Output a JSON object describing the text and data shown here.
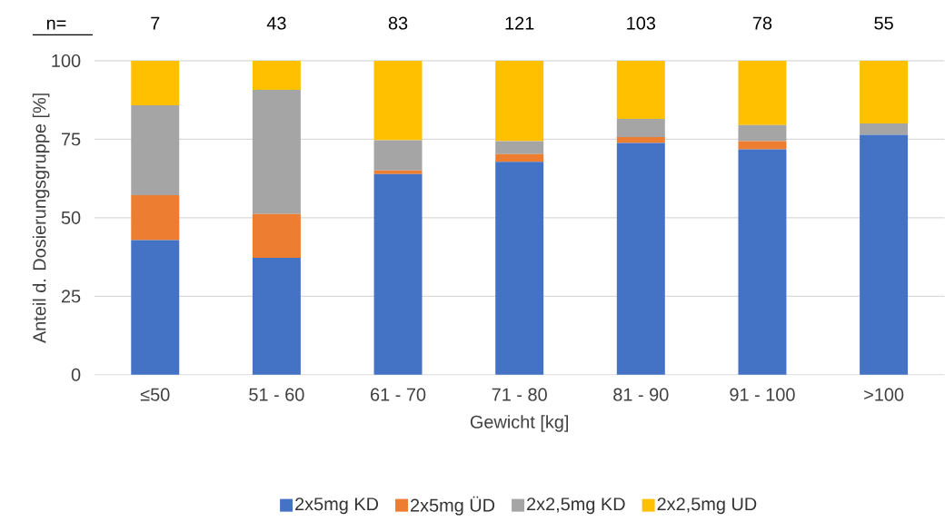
{
  "chart_data": {
    "type": "bar",
    "stacked": true,
    "xlabel": "Gewicht [kg]",
    "ylabel": "Anteil d. Dosierungsgruppe [%]",
    "categories": [
      "≤50",
      "51 - 60",
      "61 - 70",
      "71 - 80",
      "81 - 90",
      "91 - 100",
      ">100"
    ],
    "series": [
      {
        "name": "2x5mg KD",
        "color": "#4472c4",
        "values": [
          42.9,
          37.2,
          63.9,
          67.8,
          73.8,
          71.8,
          76.4
        ]
      },
      {
        "name": "2x5mg ÜD",
        "color": "#ed7d31",
        "values": [
          14.3,
          14.0,
          1.2,
          2.5,
          1.9,
          2.6,
          0
        ]
      },
      {
        "name": "2x2,5mg KD",
        "color": "#a5a5a5",
        "values": [
          28.6,
          39.5,
          9.6,
          4.1,
          5.8,
          5.1,
          3.6
        ]
      },
      {
        "name": "2x2,5mg UD",
        "color": "#ffc000",
        "values": [
          14.2,
          9.3,
          25.3,
          25.6,
          18.5,
          20.5,
          20.0
        ]
      }
    ],
    "ylim": [
      0,
      100
    ],
    "yticks": [
      0,
      25,
      50,
      75,
      100
    ],
    "grid": "y",
    "legend": "bottom",
    "annotations": [
      "n=",
      "7",
      "43",
      "83",
      "121",
      "103",
      "78",
      "55"
    ]
  }
}
